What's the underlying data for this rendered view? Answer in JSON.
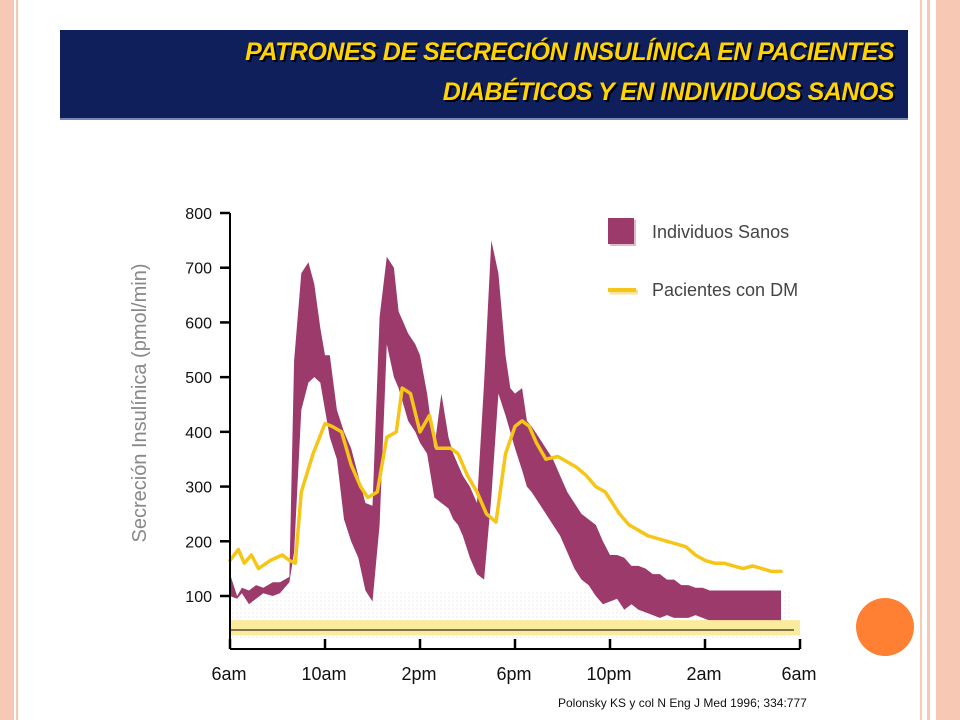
{
  "slide": {
    "title_line1": "PATRONES DE SECRECIÓN INSULÍNICA EN PACIENTES",
    "title_line2": "DIABÉTICOS  Y  EN INDIVIDUOS  SANOS",
    "citation": "Polonsky KS y col  N Eng J Med 1996; 334:777",
    "colors": {
      "banner": "#0e1f5c",
      "title_text": "#ffd400",
      "healthy_band": "#9c3a6c",
      "dm_line": "#f5c518",
      "baseline_band": "#fbeb9c",
      "accent_circle": "#ff7f33",
      "border": "#f7c9b5"
    }
  },
  "chart_data": {
    "type": "area",
    "ylabel": "Secreción Insulínica  (pmol/min)",
    "ylim": [
      0,
      800
    ],
    "yticks": [
      100,
      200,
      300,
      400,
      500,
      600,
      700,
      800
    ],
    "xlim": [
      0,
      24
    ],
    "xticks": [
      0,
      4,
      8,
      12,
      16,
      20,
      24
    ],
    "xtick_labels": [
      "6am",
      "10am",
      "2pm",
      "6pm",
      "10pm",
      "2am",
      "6am"
    ],
    "legend": {
      "position": "top-right",
      "entries": [
        {
          "label": "Individuos  Sanos",
          "kind": "band",
          "color": "#9c3a6c"
        },
        {
          "label": "Pacientes con DM",
          "kind": "line",
          "color": "#f5c518"
        }
      ]
    },
    "series": [
      {
        "name": "Individuos  Sanos",
        "kind": "band",
        "x": [
          0,
          0.3,
          0.5,
          0.8,
          1.1,
          1.4,
          1.8,
          2.1,
          2.5,
          2.7,
          3.0,
          3.3,
          3.55,
          3.8,
          4.0,
          4.2,
          4.5,
          4.8,
          5.1,
          5.4,
          5.7,
          6.0,
          6.3,
          6.6,
          6.9,
          7.1,
          7.3,
          7.5,
          7.8,
          8.0,
          8.3,
          8.6,
          8.9,
          9.2,
          9.4,
          9.6,
          9.8,
          10.1,
          10.4,
          10.7,
          11.0,
          11.3,
          11.6,
          11.8,
          12.0,
          12.3,
          12.5,
          12.7,
          13.0,
          13.3,
          13.6,
          13.9,
          14.2,
          14.5,
          14.8,
          15.1,
          15.4,
          15.7,
          16.0,
          16.3,
          16.6,
          16.9,
          17.2,
          17.5,
          17.8,
          18.1,
          18.4,
          18.7,
          19.0,
          19.3,
          19.6,
          19.9,
          20.2,
          20.5,
          20.8,
          21.1,
          21.4,
          21.7,
          22.0,
          22.3,
          22.6,
          22.9,
          23.2
        ],
        "low": [
          100,
          95,
          105,
          85,
          95,
          105,
          100,
          105,
          125,
          180,
          440,
          490,
          500,
          490,
          440,
          390,
          350,
          240,
          200,
          170,
          110,
          90,
          230,
          560,
          500,
          480,
          450,
          420,
          400,
          380,
          360,
          280,
          270,
          260,
          240,
          230,
          210,
          170,
          140,
          130,
          280,
          470,
          430,
          400,
          370,
          330,
          300,
          290,
          270,
          250,
          230,
          210,
          180,
          150,
          130,
          120,
          100,
          85,
          90,
          95,
          75,
          85,
          75,
          70,
          65,
          60,
          65,
          60,
          60,
          60,
          65,
          60,
          55,
          55,
          55,
          55,
          55,
          55,
          55,
          55,
          55,
          55,
          55
        ],
        "high": [
          140,
          100,
          115,
          110,
          120,
          115,
          125,
          125,
          135,
          530,
          690,
          710,
          670,
          590,
          540,
          540,
          440,
          400,
          370,
          320,
          270,
          265,
          610,
          720,
          700,
          620,
          600,
          580,
          560,
          540,
          470,
          370,
          470,
          390,
          360,
          340,
          320,
          300,
          270,
          490,
          750,
          690,
          540,
          480,
          470,
          480,
          420,
          410,
          390,
          370,
          350,
          320,
          290,
          270,
          250,
          240,
          230,
          200,
          175,
          175,
          170,
          155,
          155,
          150,
          140,
          140,
          130,
          130,
          120,
          120,
          115,
          115,
          110,
          110,
          110,
          110,
          110,
          110,
          110,
          110,
          110,
          110,
          110
        ]
      },
      {
        "name": "Pacientes con DM",
        "kind": "line",
        "x": [
          0,
          0.35,
          0.6,
          0.9,
          1.2,
          1.7,
          2.2,
          2.5,
          2.75,
          3.0,
          3.5,
          4.0,
          4.3,
          4.7,
          5.1,
          5.5,
          5.8,
          6.2,
          6.6,
          7.0,
          7.25,
          7.6,
          8.0,
          8.4,
          8.7,
          9.0,
          9.3,
          9.6,
          10.0,
          10.4,
          10.8,
          11.2,
          11.6,
          12.0,
          12.3,
          12.6,
          12.9,
          13.3,
          13.8,
          14.2,
          14.6,
          15.0,
          15.4,
          15.8,
          16.1,
          16.4,
          16.8,
          17.2,
          17.6,
          18.0,
          18.4,
          18.8,
          19.2,
          19.6,
          20.0,
          20.4,
          20.8,
          21.2,
          21.6,
          22.0,
          22.4,
          22.8,
          23.2
        ],
        "values": [
          165,
          185,
          160,
          175,
          150,
          165,
          175,
          165,
          160,
          290,
          360,
          415,
          410,
          400,
          340,
          300,
          280,
          290,
          390,
          400,
          480,
          470,
          400,
          430,
          370,
          370,
          370,
          360,
          320,
          290,
          250,
          235,
          360,
          410,
          420,
          410,
          380,
          350,
          355,
          345,
          335,
          320,
          300,
          290,
          270,
          250,
          230,
          220,
          210,
          205,
          200,
          195,
          190,
          175,
          165,
          160,
          160,
          155,
          150,
          155,
          150,
          145,
          145
        ]
      },
      {
        "name": "baseline",
        "kind": "band",
        "x": [
          0,
          24
        ],
        "low": [
          28,
          28
        ],
        "high": [
          56,
          56
        ]
      }
    ]
  }
}
